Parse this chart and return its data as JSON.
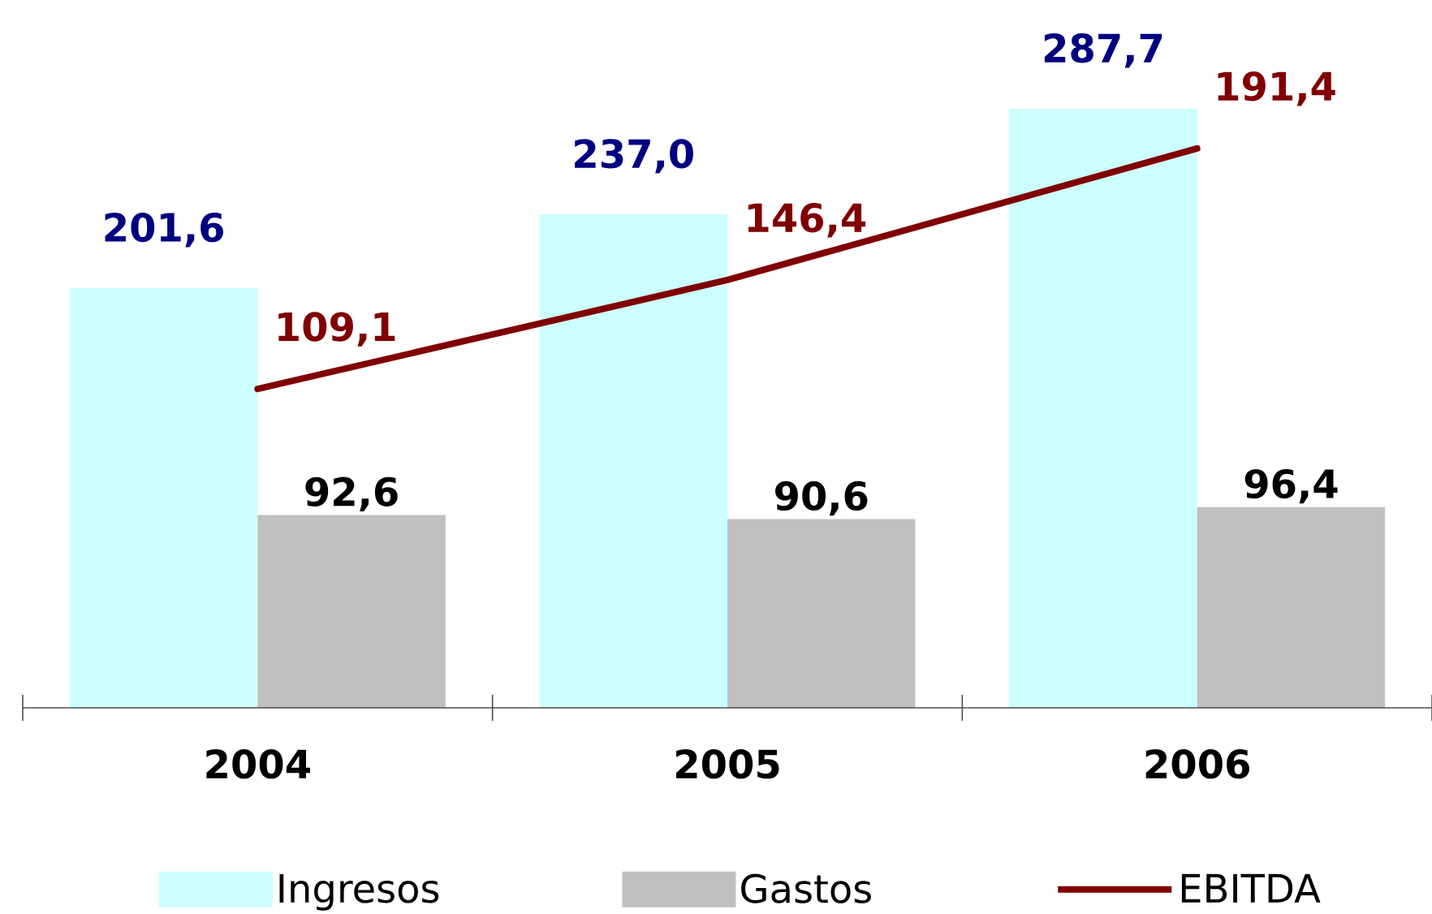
{
  "chart_data": {
    "type": "bar",
    "categories": [
      "2004",
      "2005",
      "2006"
    ],
    "series": [
      {
        "name": "Ingresos",
        "color": "#ccffff",
        "values": [
          201.6,
          237.0,
          287.7
        ],
        "value_labels": [
          "201,6",
          "237,0",
          "287,7"
        ]
      },
      {
        "name": "Gastos",
        "color": "#c0c0c0",
        "values": [
          92.6,
          90.6,
          96.4
        ],
        "value_labels": [
          "92,6",
          "90,6",
          "96,4"
        ]
      },
      {
        "name": "EBITDA",
        "type": "line",
        "axis": "y2",
        "color": "#800000",
        "values": [
          109.1,
          146.4,
          191.4
        ],
        "value_labels": [
          "109,1",
          "146,4",
          "191,4"
        ]
      }
    ],
    "tick_labels": "x",
    "legend": "bottom"
  }
}
